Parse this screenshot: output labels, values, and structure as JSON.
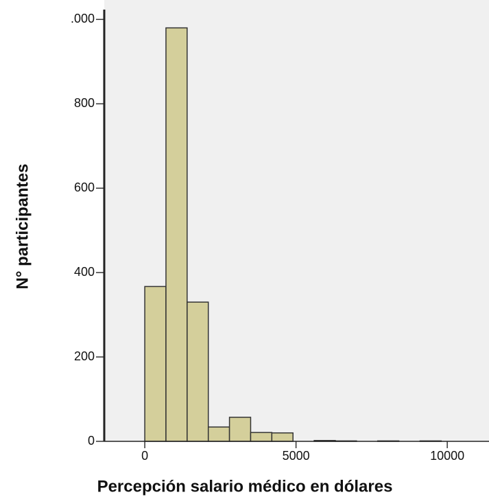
{
  "chart_data": {
    "type": "histogram",
    "x_label": "Percepción salario médico en dólares",
    "y_label": "N° participantes",
    "bins": [
      0,
      700,
      1400,
      2100,
      2800,
      3500,
      4200,
      4900,
      5600,
      6300,
      7000,
      7700,
      8400,
      9100,
      9800
    ],
    "values": [
      367,
      980,
      330,
      34,
      57,
      21,
      20,
      0,
      2,
      1,
      0,
      1,
      0,
      1
    ],
    "color": "#d4cf9b",
    "xlim": [
      -1340,
      11380
    ],
    "xticks": [
      0,
      5000,
      10000
    ],
    "ylim": [
      0,
      1020
    ],
    "yticks": [
      0,
      200,
      400,
      600,
      800,
      {
        "value": 1000,
        "label": ".000"
      }
    ]
  }
}
